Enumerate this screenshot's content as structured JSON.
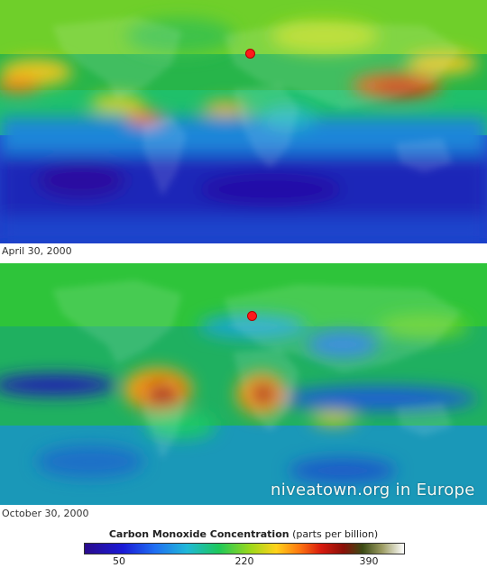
{
  "panels": [
    {
      "date": "April 30, 2000"
    },
    {
      "date": "October 30, 2000"
    }
  ],
  "watermark": "niveatown.org in Europe",
  "legend": {
    "title": "Carbon Monoxide Concentration",
    "unit": "(parts per billion)",
    "ticks": [
      "50",
      "220",
      "390"
    ],
    "colors": [
      "#2a0b8c",
      "#1a1ad6",
      "#1f6ff2",
      "#1fb8d8",
      "#1ec85a",
      "#9ed81a",
      "#ffd21a",
      "#ff7a10",
      "#d81a0e",
      "#8a1008",
      "#3a4a14",
      "#9a9a60",
      "#ffffff"
    ]
  },
  "marker_color": "#ff1a1a"
}
